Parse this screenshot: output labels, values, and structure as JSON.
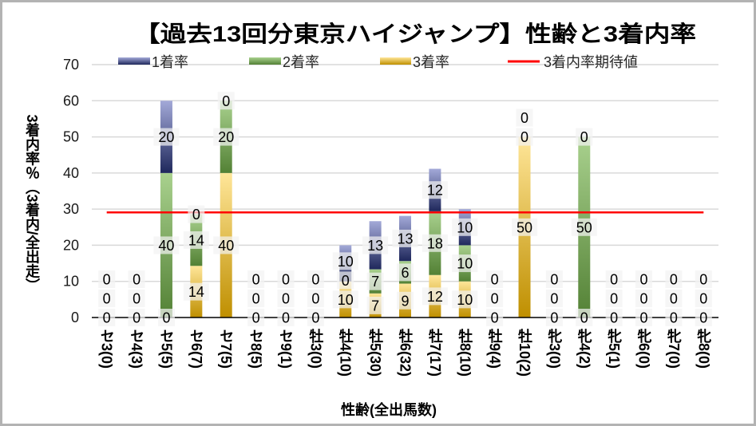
{
  "chart_data": {
    "type": "bar",
    "stacked": true,
    "title": "【過去13回分東京ハイジャンプ】性齢と3着内率",
    "xlabel": "性齢(全出馬数)",
    "ylabel": "3着内率％（3着内/全出走）",
    "ylim": [
      0,
      70
    ],
    "y_ticks": [
      "0",
      "10",
      "20",
      "30",
      "40",
      "50",
      "60",
      "70"
    ],
    "grid": true,
    "legend_position": "top",
    "categories": [
      "セ3(0)",
      "セ4(3)",
      "セ5(5)",
      "セ6(7)",
      "セ7(5)",
      "セ8(5)",
      "セ9(1)",
      "牡3(0)",
      "牡4(10)",
      "牡5(30)",
      "牡6(32)",
      "牡7(17)",
      "牡8(10)",
      "牡9(4)",
      "牡10(2)",
      "牝3(0)",
      "牝4(2)",
      "牝5(1)",
      "牝6(0)",
      "牝7(0)",
      "牝8(0)"
    ],
    "series": [
      {
        "name": "1着率",
        "color_top": "#a3a9d8",
        "color_bottom": "#1f285c",
        "values": [
          0,
          0,
          20,
          0,
          0,
          0,
          0,
          0,
          10,
          13.33,
          12.5,
          11.76,
          10,
          0,
          0,
          0,
          0,
          0,
          0,
          0,
          0
        ],
        "labels": [
          "0",
          "0",
          "20",
          "0",
          "0",
          "0",
          "0",
          "0",
          "10",
          "13",
          "13",
          "12",
          "10",
          "0",
          "0",
          "0",
          "0",
          "0",
          "0",
          "0",
          "0"
        ]
      },
      {
        "name": "2着率",
        "color_top": "#a9d18e",
        "color_bottom": "#538135",
        "values": [
          0,
          0,
          40,
          14.29,
          20,
          0,
          0,
          0,
          0,
          6.67,
          6.25,
          17.65,
          10,
          0,
          0,
          0,
          50,
          0,
          0,
          0,
          0
        ],
        "labels": [
          "0",
          "0",
          "40",
          "14",
          "20",
          "0",
          "0",
          "0",
          "0",
          "7",
          "6",
          "18",
          "10",
          "0",
          "0",
          "0",
          "50",
          "0",
          "0",
          "0",
          "0"
        ]
      },
      {
        "name": "3着率",
        "color_top": "#ffe699",
        "color_bottom": "#bf8f00",
        "values": [
          0,
          0,
          0,
          14.29,
          40,
          0,
          0,
          0,
          10,
          6.67,
          9.38,
          11.76,
          10,
          0,
          50,
          0,
          0,
          0,
          0,
          0,
          0
        ],
        "labels": [
          "0",
          "0",
          "0",
          "14",
          "40",
          "0",
          "0",
          "0",
          "10",
          "7",
          "9",
          "12",
          "10",
          "0",
          "50",
          "0",
          "0",
          "0",
          "0",
          "0",
          "0"
        ]
      }
    ],
    "reference_line": {
      "name": "3着内率期待値",
      "value": 29.1,
      "color": "#ff0000"
    }
  }
}
